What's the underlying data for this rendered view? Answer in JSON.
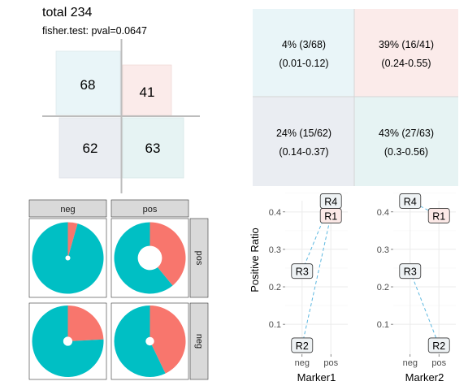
{
  "header": {
    "title": "total 234",
    "subtitle": "fisher.test: pval=0.0647"
  },
  "colors": {
    "pos": "#F8766D",
    "neg": "#00BFC4",
    "cell_top_left": "#E9F5F8",
    "cell_top_right": "#FBEBEA",
    "cell_bottom_left": "#EAEDF2",
    "cell_bottom_right": "#E6F3F3",
    "strip": "#D9D9D9",
    "grid": "#EBEBEB",
    "line": "#5BB7E0",
    "label_fill_R1": "#FCE9E7",
    "label_fill_default": "#EEF2F4"
  },
  "chart_data": [
    {
      "type": "table",
      "name": "counts",
      "cells": [
        {
          "row": "top",
          "col": "left",
          "value": "68"
        },
        {
          "row": "top",
          "col": "right",
          "value": "41"
        },
        {
          "row": "bottom",
          "col": "left",
          "value": "62"
        },
        {
          "row": "bottom",
          "col": "right",
          "value": "63"
        }
      ]
    },
    {
      "type": "table",
      "name": "ratios",
      "cells": [
        {
          "row": "top",
          "col": "left",
          "line1": "4% (3/68)",
          "line2": "(0.01-0.12)"
        },
        {
          "row": "top",
          "col": "right",
          "line1": "39% (16/41)",
          "line2": "(0.24-0.55)"
        },
        {
          "row": "bottom",
          "col": "left",
          "line1": "24% (15/62)",
          "line2": "(0.14-0.37)"
        },
        {
          "row": "bottom",
          "col": "right",
          "line1": "43% (27/63)",
          "line2": "(0.3-0.56)"
        }
      ]
    },
    {
      "type": "pie",
      "col_strips": [
        "neg",
        "pos"
      ],
      "row_strips": [
        "pos",
        "neg"
      ],
      "panels": [
        {
          "row": "pos",
          "col": "neg",
          "total": 68,
          "pos": 3,
          "neg": 65
        },
        {
          "row": "pos",
          "col": "pos",
          "total": 41,
          "pos": 16,
          "neg": 25
        },
        {
          "row": "neg",
          "col": "neg",
          "total": 62,
          "pos": 15,
          "neg": 47
        },
        {
          "row": "neg",
          "col": "pos",
          "total": 63,
          "pos": 27,
          "neg": 36
        }
      ]
    },
    {
      "type": "line",
      "ylabel": "Positive Ratio",
      "ylim": [
        0.02,
        0.43
      ],
      "yticks": [
        "0.1",
        "0.2",
        "0.3",
        "0.4"
      ],
      "grid": true,
      "panels": [
        {
          "xlabel": "Marker1",
          "categories": [
            "neg",
            "pos"
          ],
          "points": [
            {
              "label": "R2",
              "x": "neg",
              "y": 0.044
            },
            {
              "label": "R3",
              "x": "neg",
              "y": 0.242
            },
            {
              "label": "R1",
              "x": "pos",
              "y": 0.39
            },
            {
              "label": "R4",
              "x": "pos",
              "y": 0.429
            }
          ],
          "lines": [
            [
              "R3",
              "R4"
            ],
            [
              "R2",
              "R1"
            ]
          ]
        },
        {
          "xlabel": "Marker2",
          "categories": [
            "neg",
            "pos"
          ],
          "points": [
            {
              "label": "R4",
              "x": "neg",
              "y": 0.429
            },
            {
              "label": "R3",
              "x": "neg",
              "y": 0.242
            },
            {
              "label": "R1",
              "x": "pos",
              "y": 0.39
            },
            {
              "label": "R2",
              "x": "pos",
              "y": 0.044
            }
          ],
          "lines": [
            [
              "R4",
              "R1"
            ],
            [
              "R3",
              "R2"
            ]
          ]
        }
      ]
    }
  ]
}
